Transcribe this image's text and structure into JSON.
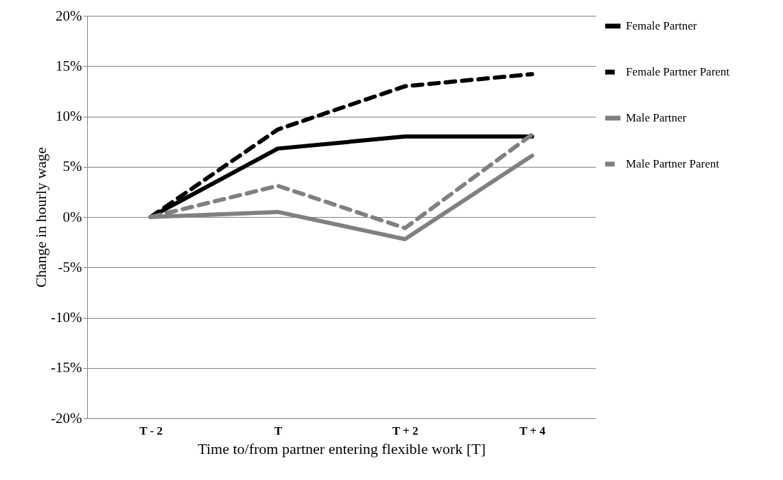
{
  "chart_data": {
    "type": "line",
    "xlabel": "Time to/from partner entering flexible work [T]",
    "ylabel": "Change in hourly wage",
    "categories": [
      "T - 2",
      "T",
      "T + 2",
      "T + 4"
    ],
    "series": [
      {
        "name": "Female Partner",
        "color": "#000000",
        "line_style": "solid",
        "values": [
          0,
          6.8,
          8.0,
          8.0
        ]
      },
      {
        "name": "Female Partner Parent",
        "color": "#000000",
        "line_style": "dashed",
        "values": [
          0,
          8.7,
          13.0,
          14.2
        ]
      },
      {
        "name": "Male Partner",
        "color": "#808080",
        "line_style": "solid",
        "values": [
          0,
          0.5,
          -2.2,
          6.1
        ]
      },
      {
        "name": "Male Partner Parent",
        "color": "#808080",
        "line_style": "dashed",
        "values": [
          0,
          3.1,
          -1.1,
          8.2
        ]
      }
    ],
    "ylim": [
      -20,
      20
    ],
    "yticks": [
      {
        "value": -20,
        "label": "-20%"
      },
      {
        "value": -15,
        "label": "-15%"
      },
      {
        "value": -10,
        "label": "-10%"
      },
      {
        "value": -5,
        "label": "-5%"
      },
      {
        "value": 0,
        "label": "0%"
      },
      {
        "value": 5,
        "label": "5%"
      },
      {
        "value": 10,
        "label": "10%"
      },
      {
        "value": 15,
        "label": "15%"
      },
      {
        "value": 20,
        "label": "20%"
      }
    ],
    "grid": "y",
    "legend": "right",
    "marker": "none"
  }
}
